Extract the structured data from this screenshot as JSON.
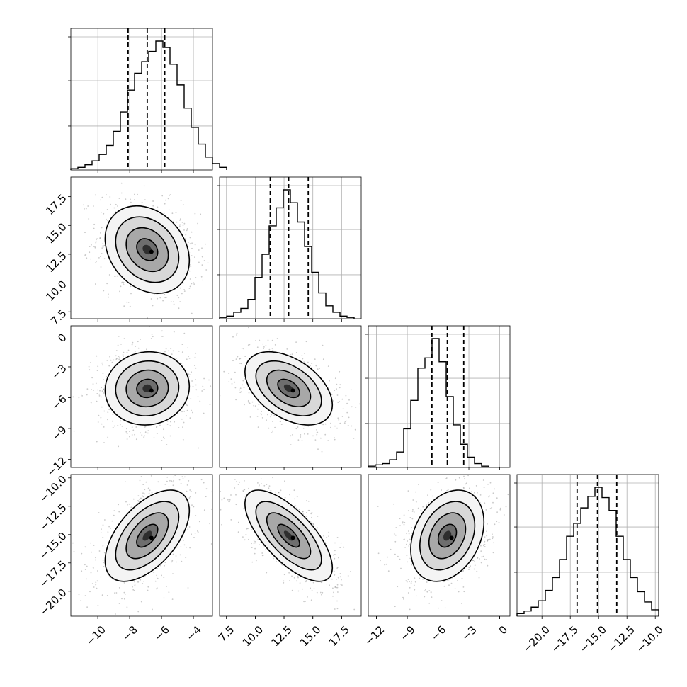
{
  "chart_data": {
    "type": "corner",
    "grid": true,
    "parameters": [
      {
        "ticks": [
          -10,
          -8,
          -6,
          -4
        ],
        "tick_labels": [
          "−10",
          "−8",
          "−6",
          "−4"
        ],
        "range": [
          -11.7,
          -2.8
        ],
        "median": -6.9,
        "q16": -8.1,
        "q84": -5.8
      },
      {
        "ticks": [
          7.5,
          10.0,
          12.5,
          15.0,
          17.5
        ],
        "tick_labels": [
          "7.5",
          "10.0",
          "12.5",
          "15.0",
          "17.5"
        ],
        "range": [
          6.9,
          19.2
        ],
        "median": 12.9,
        "q16": 11.3,
        "q84": 14.6
      },
      {
        "ticks": [
          -12,
          -9,
          -6,
          -3,
          0
        ],
        "tick_labels": [
          "−12",
          "−9",
          "−6",
          "−3",
          "0"
        ],
        "range": [
          -12.8,
          1.0
        ],
        "median": -5.1,
        "q16": -6.6,
        "q84": -3.5
      },
      {
        "ticks": [
          -20.0,
          -17.5,
          -15.0,
          -12.5,
          -10.0
        ],
        "tick_labels": [
          "−20.0",
          "−17.5",
          "−15.0",
          "−12.5",
          "−10.0"
        ],
        "range": [
          -22.2,
          -9.7
        ],
        "median": -15.1,
        "q16": -16.9,
        "q84": -13.4
      }
    ],
    "histograms": [
      {
        "edges_start": -11.7,
        "bin_width": 0.445,
        "counts": [
          0.01,
          0.02,
          0.04,
          0.07,
          0.12,
          0.19,
          0.3,
          0.45,
          0.62,
          0.75,
          0.84,
          0.92,
          1.0,
          0.95,
          0.82,
          0.66,
          0.48,
          0.33,
          0.2,
          0.1,
          0.05,
          0.02
        ]
      },
      {
        "edges_start": 6.9,
        "bin_width": 0.615,
        "counts": [
          0.01,
          0.02,
          0.05,
          0.08,
          0.15,
          0.32,
          0.5,
          0.72,
          0.86,
          1.0,
          0.9,
          0.75,
          0.56,
          0.36,
          0.2,
          0.1,
          0.05,
          0.02,
          0.01
        ]
      },
      {
        "edges_start": -12.8,
        "bin_width": 0.69,
        "counts": [
          0.01,
          0.02,
          0.03,
          0.06,
          0.12,
          0.3,
          0.52,
          0.77,
          0.85,
          1.0,
          0.82,
          0.55,
          0.33,
          0.18,
          0.08,
          0.03,
          0.01
        ]
      },
      {
        "edges_start": -22.2,
        "bin_width": 0.625,
        "counts": [
          0.02,
          0.04,
          0.07,
          0.12,
          0.2,
          0.3,
          0.44,
          0.62,
          0.72,
          0.84,
          0.93,
          1.0,
          0.92,
          0.82,
          0.62,
          0.44,
          0.3,
          0.19,
          0.11,
          0.05
        ]
      }
    ],
    "correlations": [
      {
        "pair": [
          0,
          1
        ],
        "rho": -0.25,
        "stretch": [
          1.0,
          1.0
        ]
      },
      {
        "pair": [
          0,
          2
        ],
        "rho": 0.05,
        "stretch": [
          1.0,
          1.0
        ]
      },
      {
        "pair": [
          1,
          2
        ],
        "rho": -0.45,
        "stretch": [
          1.0,
          1.0
        ]
      },
      {
        "pair": [
          0,
          3
        ],
        "rho": 0.55,
        "stretch": [
          1.0,
          1.0
        ]
      },
      {
        "pair": [
          1,
          3
        ],
        "rho": -0.7,
        "stretch": [
          1.0,
          1.0
        ]
      },
      {
        "pair": [
          2,
          3
        ],
        "rho": 0.3,
        "stretch": [
          1.0,
          1.0
        ]
      }
    ],
    "contour_levels_sigma": [
      0.5,
      1.0,
      1.5,
      2.0
    ],
    "colors": {
      "line": "#000000",
      "grid": "#b0b0b0",
      "points": "#888888"
    }
  }
}
